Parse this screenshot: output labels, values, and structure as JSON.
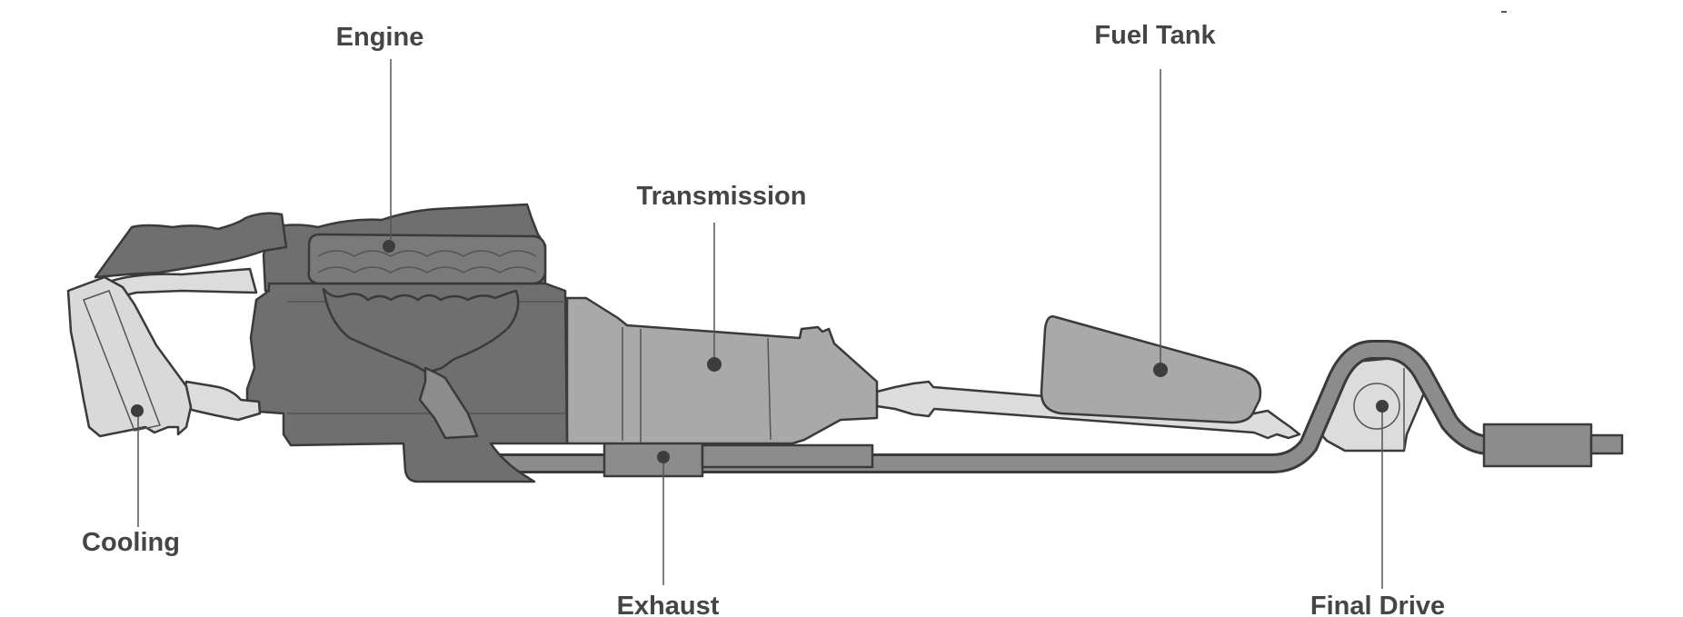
{
  "diagram": {
    "labels": {
      "engine": "Engine",
      "fuel_tank": "Fuel Tank",
      "transmission": "Transmission",
      "cooling": "Cooling",
      "exhaust": "Exhaust",
      "final_drive": "Final Drive"
    },
    "colors": {
      "dark_gray": "#6f6f6f",
      "mid_gray": "#a6a6a6",
      "light_gray": "#d9d9d9",
      "outline": "#3a3a3a",
      "text": "#454545"
    }
  }
}
